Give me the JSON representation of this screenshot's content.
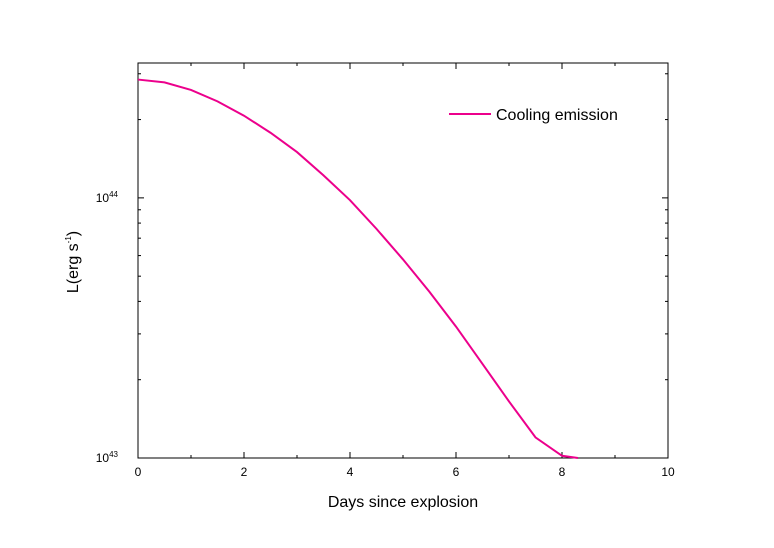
{
  "chart_data": {
    "type": "line",
    "xlabel": "Days since explosion",
    "ylabel_main": "L(erg s",
    "ylabel_exp": "-1",
    "ylabel_close": ")",
    "xlim": [
      0,
      10
    ],
    "ylim": [
      1e+43,
      3.3e+44
    ],
    "yscale": "log",
    "x_ticks": [
      0,
      2,
      4,
      6,
      8,
      10
    ],
    "x_tick_labels": [
      "0",
      "2",
      "4",
      "6",
      "8",
      "10"
    ],
    "y_tick_labels": [
      {
        "value": 1e+43,
        "base": "10",
        "exp": "43"
      },
      {
        "value": 1e+44,
        "base": "10",
        "exp": "44"
      }
    ],
    "grid": false,
    "legend_position": "top-right",
    "series": [
      {
        "name": "Cooling emission",
        "color": "#ec008c",
        "x": [
          0,
          0.5,
          1,
          1.5,
          2,
          2.5,
          3,
          3.5,
          4,
          4.5,
          5,
          5.5,
          6,
          6.5,
          7,
          7.5,
          8,
          8.3
        ],
        "y": [
          2.85e+44,
          2.78e+44,
          2.6e+44,
          2.35e+44,
          2.07e+44,
          1.78e+44,
          1.5e+44,
          1.22e+44,
          9.8e+43,
          7.6e+43,
          5.8e+43,
          4.35e+43,
          3.2e+43,
          2.3e+43,
          1.65e+43,
          1.2e+43,
          1.02e+43,
          1e+43
        ]
      }
    ]
  }
}
